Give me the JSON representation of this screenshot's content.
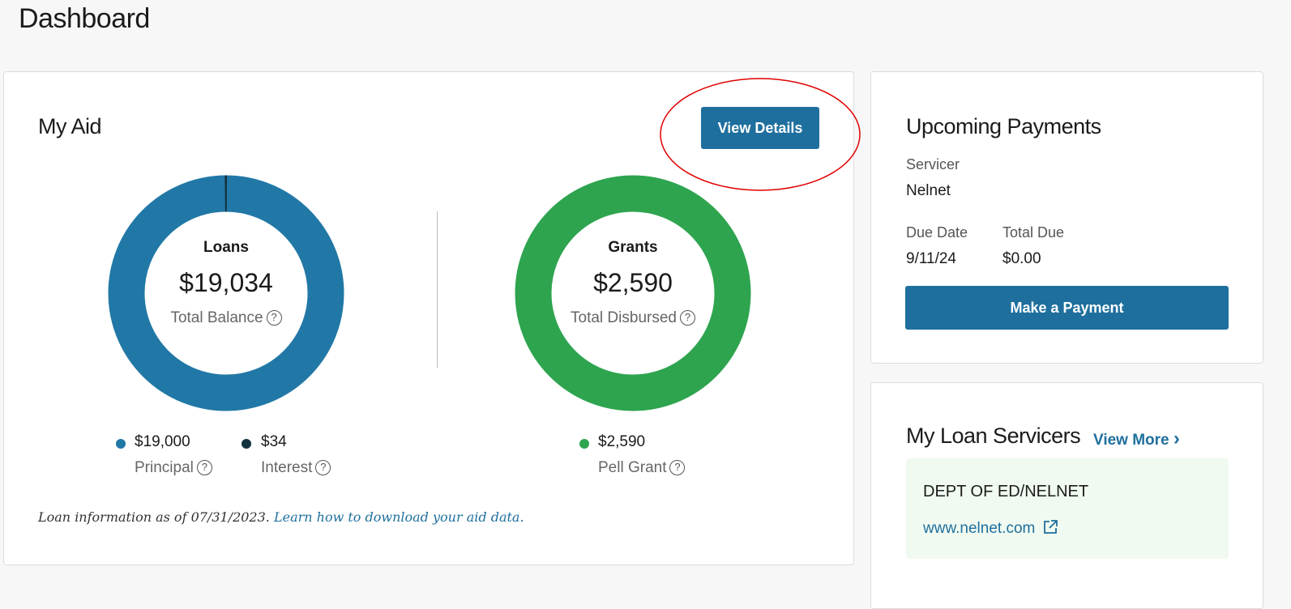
{
  "page_title": "Dashboard",
  "my_aid": {
    "title": "My Aid",
    "view_details": "View Details",
    "loans": {
      "title": "Loans",
      "amount": "$19,034",
      "caption": "Total Balance",
      "legend": [
        {
          "value": "$19,000",
          "label": "Principal",
          "color": "#2178a6",
          "amount": 19000
        },
        {
          "value": "$34",
          "label": "Interest",
          "color": "#14313e",
          "amount": 34
        }
      ]
    },
    "grants": {
      "title": "Grants",
      "amount": "$2,590",
      "caption": "Total Disbursed",
      "legend": [
        {
          "value": "$2,590",
          "label": "Pell Grant",
          "color": "#2ea44f",
          "amount": 2590
        }
      ]
    },
    "footnote": "Loan information as of 07/31/2023.",
    "footnote_link": "Learn how to download your aid data.",
    "help_icon": "?"
  },
  "upcoming": {
    "title": "Upcoming Payments",
    "servicer_label": "Servicer",
    "servicer": "Nelnet",
    "due_date_label": "Due Date",
    "due_date": "9/11/24",
    "total_due_label": "Total Due",
    "total_due": "$0.00",
    "pay_button": "Make a Payment"
  },
  "servicers": {
    "title": "My Loan Servicers",
    "view_more": "View More",
    "chevron": "›",
    "items": [
      {
        "name": "DEPT OF ED/NELNET",
        "url": "www.nelnet.com"
      }
    ]
  },
  "colors": {
    "accent": "#1f6f9e",
    "loans": "#2178a6",
    "interest": "#14313e",
    "grants": "#2ea44f",
    "annotation": "#e00000",
    "servicer_bg": "#f0faf0"
  }
}
